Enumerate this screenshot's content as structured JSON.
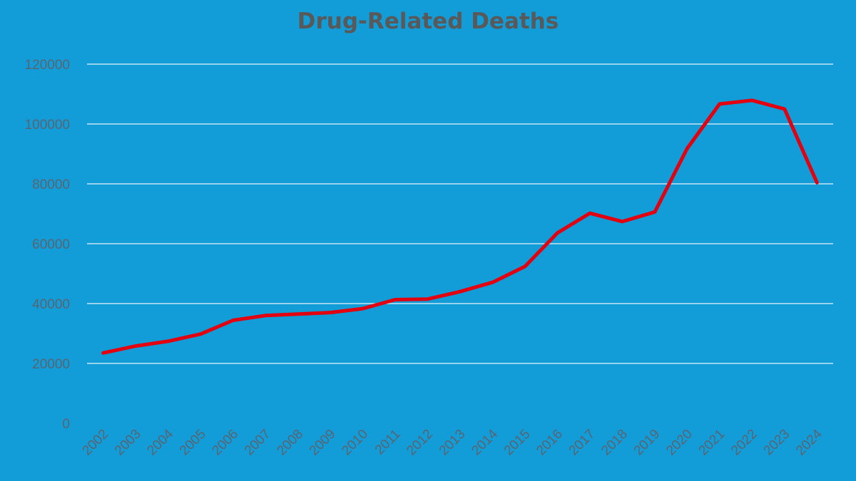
{
  "chart_data": {
    "type": "line",
    "title": "Drug-Related Deaths",
    "xlabel": "",
    "ylabel": "",
    "categories": [
      "2002",
      "2003",
      "2004",
      "2005",
      "2006",
      "2007",
      "2008",
      "2009",
      "2010",
      "2011",
      "2012",
      "2013",
      "2014",
      "2015",
      "2016",
      "2017",
      "2018",
      "2019",
      "2020",
      "2021",
      "2022",
      "2023",
      "2024"
    ],
    "series": [
      {
        "values": [
          23500,
          25800,
          27400,
          29800,
          34400,
          36000,
          36500,
          37000,
          38300,
          41300,
          41500,
          44000,
          47100,
          52400,
          63600,
          70200,
          67400,
          70600,
          91800,
          106700,
          107900,
          105000,
          80400
        ]
      }
    ],
    "ylim": [
      0,
      120000
    ],
    "yticks": [
      0,
      20000,
      40000,
      60000,
      80000,
      100000,
      120000
    ],
    "grid": true,
    "legend": "none",
    "colors": {
      "background": "#129dd8",
      "line": "#e3000f",
      "gridline": "#e8f4fb",
      "text": "#5a6470",
      "title": "#595959"
    }
  }
}
